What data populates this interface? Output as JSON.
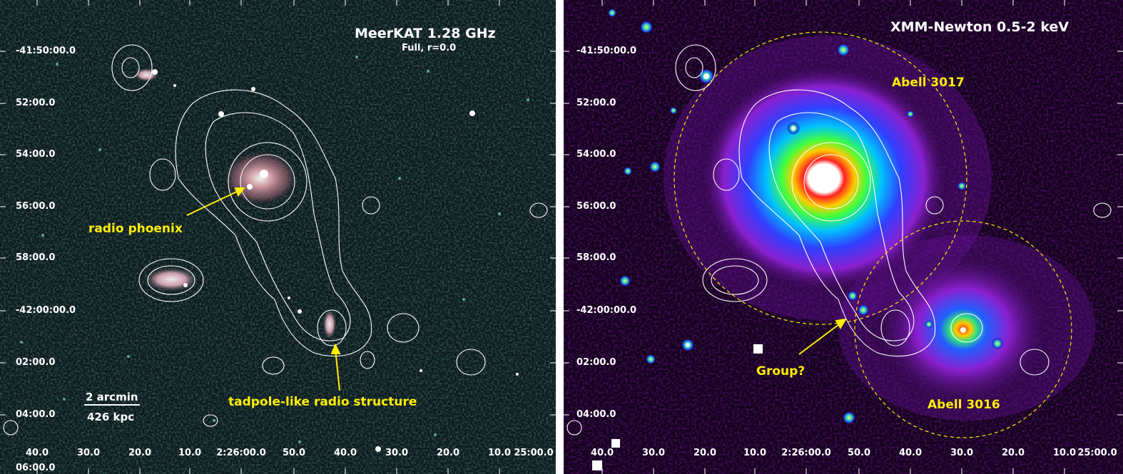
{
  "left_panel": {
    "title": "MeerKAT 1.28 GHz",
    "subtitle": "Full, r=0.0",
    "annotations": {
      "phoenix": "radio phoenix",
      "tadpole": "tadpole-like radio structure"
    },
    "scalebar": {
      "angular": "2 arcmin",
      "physical": "426 kpc"
    },
    "colors": {
      "background": "#0d1a1d",
      "sources": "#7fd4b0",
      "annotation": "#ffee00"
    }
  },
  "right_panel": {
    "title": "XMM-Newton 0.5-2 keV",
    "annotations": {
      "a3017": "Abell 3017",
      "a3016": "Abell 3016",
      "group": "Group?"
    },
    "colors": {
      "background": "#14021e",
      "annotation": "#ffee00",
      "circle": "#ffee00"
    }
  },
  "axes": {
    "dec_ticks": [
      "-41:50:00.0",
      "52:00.0",
      "54:00.0",
      "56:00.0",
      "58:00.0",
      "-42:00:00.0",
      "02:00.0",
      "04:00.0",
      "06:00.0"
    ],
    "ra_ticks": [
      "40.0",
      "30.0",
      "20.0",
      "10.0",
      "2:26:00.0",
      "50.0",
      "40.0",
      "30.0",
      "20.0",
      "10.0",
      "25:00.0"
    ]
  }
}
